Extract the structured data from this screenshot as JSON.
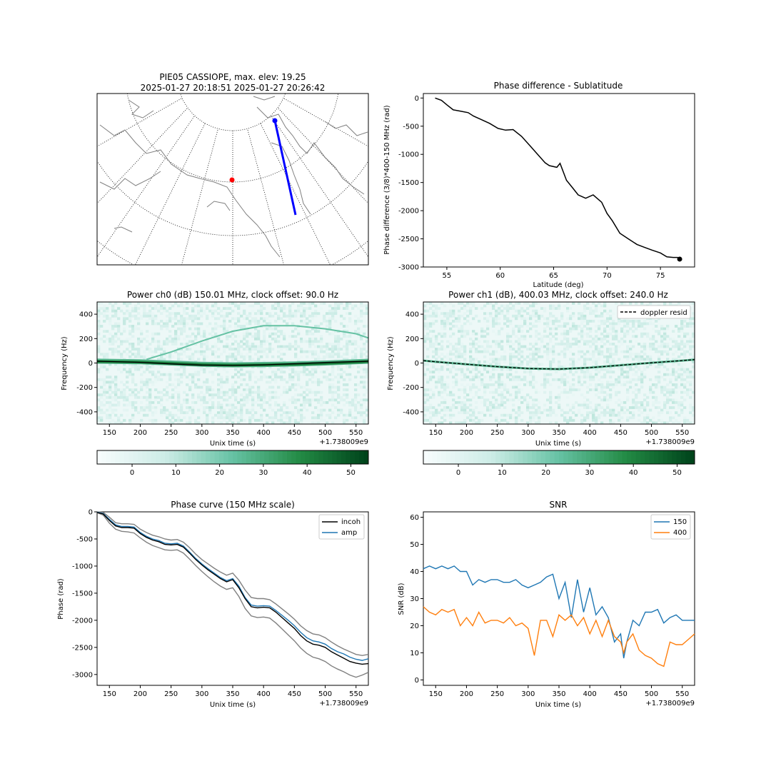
{
  "figure": {
    "map_title_line1": "PIE05 CASSIOPE, max. elev: 19.25",
    "map_title_line2": "2025-01-27 20:18:51 2025-01-27 20:26:42",
    "colors": {
      "black": "#000000",
      "blue": "#1f77b4",
      "orange": "#ff7f0e",
      "gray": "#808080",
      "track": "#0000ff",
      "site": "#ff0000",
      "coast": "#808080"
    },
    "colormap": "BuGn"
  },
  "map": {
    "projection": "polar",
    "track_line_color": "#0000ff",
    "site_marker_color": "#ff0000"
  },
  "chart_data": [
    {
      "id": "phase_lat",
      "type": "line",
      "title": "Phase difference - Sublatitude",
      "xlabel": "Latitude (deg)",
      "ylabel": "Phase difference (3/8)*400-150 MHz (rad)",
      "xlim": [
        52.8,
        78.2
      ],
      "ylim": [
        -3000,
        80
      ],
      "xticks": [
        55,
        60,
        65,
        70,
        75
      ],
      "yticks": [
        0,
        -500,
        -1000,
        -1500,
        -2000,
        -2500,
        -3000
      ],
      "series": [
        {
          "color": "#000000",
          "x": [
            53.9,
            54.5,
            55.0,
            55.6,
            56.2,
            57.0,
            57.5,
            58.2,
            59.0,
            59.8,
            60.5,
            61.2,
            62.0,
            62.8,
            63.5,
            64.2,
            64.6,
            65.3,
            65.6,
            66.2,
            66.8,
            67.3,
            68.0,
            68.7,
            69.5,
            70.0,
            70.5,
            71.2,
            72.0,
            72.8,
            73.5,
            74.2,
            75.0,
            75.6,
            76.2,
            76.6,
            76.8
          ],
          "y": [
            0,
            -40,
            -120,
            -210,
            -230,
            -260,
            -320,
            -380,
            -450,
            -540,
            -570,
            -560,
            -680,
            -850,
            -1000,
            -1150,
            -1200,
            -1230,
            -1160,
            -1460,
            -1600,
            -1720,
            -1780,
            -1720,
            -1850,
            -2050,
            -2180,
            -2400,
            -2500,
            -2600,
            -2650,
            -2700,
            -2750,
            -2820,
            -2830,
            -2830,
            -2860
          ]
        }
      ],
      "endpoint_marker": {
        "x": 76.8,
        "y": -2860
      }
    },
    {
      "id": "power_ch0",
      "type": "heatmap",
      "title": "Power ch0 (dB) 150.01 MHz, clock offset: 90.0 Hz",
      "xlabel": "Unix time (s)",
      "ylabel": "Frequency (Hz)",
      "offset_label": "+1.738009e9",
      "xlim": [
        130,
        570
      ],
      "ylim": [
        -500,
        500
      ],
      "xticks": [
        150,
        200,
        250,
        300,
        350,
        400,
        450,
        500,
        550
      ],
      "yticks": [
        400,
        200,
        0,
        -200,
        -400
      ],
      "traces": [
        {
          "name": "signal_150",
          "x": [
            130,
            200,
            250,
            300,
            350,
            400,
            450,
            500,
            550,
            570
          ],
          "y": [
            15,
            10,
            0,
            -10,
            -15,
            -12,
            -8,
            0,
            10,
            15
          ]
        },
        {
          "name": "harmonic",
          "x": [
            210,
            250,
            300,
            350,
            400,
            450,
            500,
            550,
            570
          ],
          "y": [
            30,
            90,
            180,
            260,
            305,
            305,
            280,
            240,
            205
          ]
        }
      ],
      "doppler_resid": {
        "x": [
          130,
          200,
          250,
          300,
          350,
          400,
          450,
          500,
          550,
          570
        ],
        "y": [
          15,
          5,
          -8,
          -18,
          -20,
          -15,
          -5,
          5,
          12,
          15
        ]
      },
      "colorbar": {
        "min": -8,
        "max": 54,
        "ticks": [
          0,
          10,
          20,
          30,
          40,
          50
        ]
      }
    },
    {
      "id": "power_ch1",
      "type": "heatmap",
      "title": "Power ch1 (dB), 400.03 MHz, clock offset: 240.0 Hz",
      "xlabel": "Unix time (s)",
      "ylabel": "Frequency (Hz)",
      "offset_label": "+1.738009e9",
      "legend_label": "doppler resid",
      "legend_position": "top-right",
      "xlim": [
        130,
        570
      ],
      "ylim": [
        -500,
        500
      ],
      "xticks": [
        150,
        200,
        250,
        300,
        350,
        400,
        450,
        500,
        550
      ],
      "yticks": [
        400,
        200,
        0,
        -200,
        -400
      ],
      "doppler_resid": {
        "x": [
          130,
          150,
          200,
          250,
          300,
          350,
          400,
          450,
          500,
          550,
          570
        ],
        "y": [
          20,
          10,
          -10,
          -30,
          -45,
          -50,
          -38,
          -18,
          2,
          20,
          28
        ]
      },
      "colorbar": {
        "min": -8,
        "max": 54,
        "ticks": [
          0,
          10,
          20,
          30,
          40,
          50
        ]
      }
    },
    {
      "id": "phase_curve",
      "type": "line",
      "title": "Phase curve (150 MHz scale)",
      "xlabel": "Unix time (s)",
      "ylabel": "Phase (rad)",
      "offset_label": "+1.738009e9",
      "legend_position": "top-right",
      "xlim": [
        130,
        570
      ],
      "ylim": [
        -3200,
        0
      ],
      "xticks": [
        150,
        200,
        250,
        300,
        350,
        400,
        450,
        500,
        550
      ],
      "yticks": [
        0,
        -500,
        -1000,
        -1500,
        -2000,
        -2500,
        -3000
      ],
      "series": [
        {
          "name": "incoh",
          "color": "#000000",
          "x": [
            130,
            140,
            150,
            160,
            170,
            180,
            190,
            200,
            210,
            220,
            230,
            240,
            250,
            260,
            270,
            280,
            290,
            300,
            310,
            320,
            330,
            340,
            350,
            360,
            370,
            380,
            390,
            400,
            410,
            420,
            430,
            440,
            450,
            460,
            470,
            480,
            490,
            500,
            510,
            520,
            530,
            540,
            550,
            560,
            570
          ],
          "y": [
            -10,
            -40,
            -160,
            -260,
            -290,
            -290,
            -300,
            -400,
            -470,
            -520,
            -550,
            -600,
            -610,
            -600,
            -650,
            -760,
            -880,
            -980,
            -1070,
            -1150,
            -1230,
            -1290,
            -1250,
            -1400,
            -1600,
            -1750,
            -1770,
            -1760,
            -1770,
            -1850,
            -1950,
            -2050,
            -2150,
            -2280,
            -2380,
            -2440,
            -2460,
            -2500,
            -2580,
            -2640,
            -2700,
            -2760,
            -2790,
            -2810,
            -2800
          ]
        },
        {
          "name": "amp",
          "color": "#1f77b4",
          "x": [
            130,
            140,
            150,
            160,
            170,
            180,
            190,
            200,
            210,
            220,
            230,
            240,
            250,
            260,
            270,
            280,
            290,
            300,
            310,
            320,
            330,
            340,
            350,
            360,
            370,
            380,
            390,
            400,
            410,
            420,
            430,
            440,
            450,
            460,
            470,
            480,
            490,
            500,
            510,
            520,
            530,
            540,
            550,
            560,
            570
          ],
          "y": [
            -5,
            -30,
            -140,
            -240,
            -270,
            -270,
            -280,
            -380,
            -450,
            -500,
            -530,
            -580,
            -590,
            -580,
            -630,
            -740,
            -860,
            -960,
            -1050,
            -1130,
            -1210,
            -1270,
            -1230,
            -1370,
            -1580,
            -1720,
            -1740,
            -1730,
            -1740,
            -1820,
            -1910,
            -2000,
            -2100,
            -2220,
            -2320,
            -2380,
            -2400,
            -2440,
            -2520,
            -2580,
            -2620,
            -2680,
            -2720,
            -2740,
            -2710
          ]
        },
        {
          "color": "#808080",
          "x": [
            130,
            140,
            150,
            160,
            170,
            180,
            190,
            200,
            210,
            220,
            230,
            240,
            250,
            260,
            270,
            280,
            290,
            300,
            310,
            320,
            330,
            340,
            350,
            360,
            370,
            380,
            390,
            400,
            410,
            420,
            430,
            440,
            450,
            460,
            470,
            480,
            490,
            500,
            510,
            520,
            530,
            540,
            550,
            560,
            570
          ],
          "y": [
            0,
            -10,
            -100,
            -200,
            -220,
            -220,
            -230,
            -320,
            -380,
            -430,
            -460,
            -500,
            -520,
            -510,
            -560,
            -660,
            -780,
            -880,
            -960,
            -1040,
            -1110,
            -1170,
            -1130,
            -1260,
            -1440,
            -1580,
            -1600,
            -1600,
            -1620,
            -1700,
            -1790,
            -1880,
            -1980,
            -2100,
            -2190,
            -2250,
            -2270,
            -2320,
            -2400,
            -2470,
            -2530,
            -2580,
            -2630,
            -2650,
            -2630
          ]
        },
        {
          "color": "#808080",
          "x": [
            130,
            140,
            150,
            160,
            170,
            180,
            190,
            200,
            210,
            220,
            230,
            240,
            250,
            260,
            270,
            280,
            290,
            300,
            310,
            320,
            330,
            340,
            350,
            360,
            370,
            380,
            390,
            400,
            410,
            420,
            430,
            440,
            450,
            460,
            470,
            480,
            490,
            500,
            510,
            520,
            530,
            540,
            550,
            560,
            570
          ],
          "y": [
            -15,
            -60,
            -210,
            -320,
            -360,
            -370,
            -390,
            -480,
            -560,
            -620,
            -660,
            -700,
            -710,
            -700,
            -760,
            -870,
            -990,
            -1100,
            -1200,
            -1290,
            -1370,
            -1430,
            -1400,
            -1560,
            -1780,
            -1920,
            -1950,
            -1940,
            -1960,
            -2050,
            -2160,
            -2270,
            -2380,
            -2510,
            -2610,
            -2680,
            -2710,
            -2760,
            -2840,
            -2900,
            -2950,
            -3010,
            -3050,
            -3010,
            -2960
          ]
        }
      ]
    },
    {
      "id": "snr",
      "type": "line",
      "title": "SNR",
      "xlabel": "Unix time (s)",
      "ylabel": "SNR (dB)",
      "offset_label": "+1.738009e9",
      "legend_position": "top-right",
      "xlim": [
        130,
        570
      ],
      "ylim": [
        -2,
        62
      ],
      "xticks": [
        150,
        200,
        250,
        300,
        350,
        400,
        450,
        500,
        550
      ],
      "yticks": [
        0,
        10,
        20,
        30,
        40,
        50,
        60
      ],
      "series": [
        {
          "name": "150",
          "color": "#1f77b4",
          "x": [
            130,
            140,
            150,
            160,
            170,
            180,
            190,
            200,
            210,
            220,
            230,
            240,
            250,
            260,
            270,
            280,
            290,
            300,
            310,
            320,
            330,
            340,
            350,
            360,
            370,
            380,
            390,
            400,
            410,
            420,
            430,
            440,
            450,
            455,
            460,
            470,
            480,
            490,
            500,
            510,
            520,
            530,
            540,
            550,
            560,
            570
          ],
          "y": [
            41,
            42,
            41,
            42,
            41,
            42,
            40,
            40,
            35,
            37,
            36,
            37,
            37,
            36,
            36,
            37,
            35,
            34,
            35,
            36,
            38,
            39,
            30,
            36,
            23,
            37,
            25,
            34,
            24,
            27,
            23,
            14,
            17,
            8,
            14,
            22,
            20,
            25,
            25,
            26,
            21,
            23,
            24,
            22,
            22,
            22
          ]
        },
        {
          "name": "400",
          "color": "#ff7f0e",
          "x": [
            130,
            140,
            150,
            160,
            170,
            180,
            190,
            200,
            210,
            220,
            230,
            240,
            250,
            260,
            270,
            280,
            290,
            300,
            310,
            320,
            330,
            340,
            350,
            360,
            370,
            380,
            390,
            400,
            410,
            420,
            430,
            440,
            450,
            455,
            460,
            470,
            480,
            490,
            500,
            510,
            520,
            530,
            540,
            550,
            560,
            570
          ],
          "y": [
            27,
            25,
            24,
            26,
            25,
            26,
            20,
            23,
            20,
            25,
            21,
            22,
            22,
            21,
            23,
            20,
            21,
            19,
            9,
            22,
            22,
            16,
            24,
            22,
            24,
            20,
            23,
            17,
            22,
            16,
            22,
            16,
            14,
            10,
            14,
            17,
            11,
            9,
            8,
            6,
            5,
            14,
            13,
            13,
            15,
            17
          ]
        }
      ]
    }
  ]
}
